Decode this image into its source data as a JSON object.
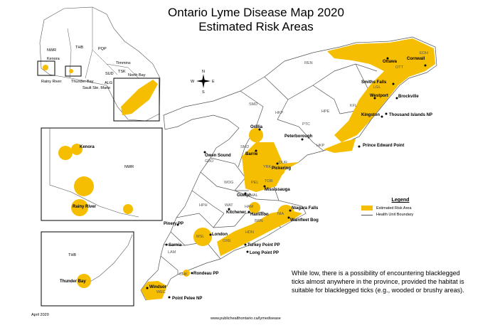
{
  "title_line1": "Ontario Lyme Disease Map 2020",
  "title_line2": "Estimated Risk Areas",
  "legend": {
    "heading": "Legend",
    "risk_area_label": "Estimated Risk Area",
    "boundary_label": "Health Unit Boundary"
  },
  "note": "While low, there is a possibility of encountering blacklegged ticks almost anywhere in the province, provided the habitat is suitable for blacklegged ticks (e.g., wooded or brushy areas).",
  "footer_date": "April 2020",
  "footer_url": "www.publichealthontario.ca/lymedisease",
  "compass": {
    "n": "N",
    "s": "S",
    "e": "E",
    "w": "W"
  },
  "colors": {
    "risk": "#f6be00",
    "boundary": "#555555"
  },
  "inset_labels": {
    "nwr": "NWR",
    "thb": "THB",
    "pqp": "PQP",
    "kenora": "Kenora",
    "rainy_river": "Rainy River",
    "thunder_bay": "Thunder Bay",
    "timmins": "Timmins",
    "sud": "SUD",
    "tsk": "TSK",
    "north_bay": "North Bay",
    "alg": "ALG",
    "sault": "Sault Ste. Marie"
  },
  "detail_nwr": {
    "kenora": "Kenora",
    "nwr": "NWR",
    "rainy_river": "Rainy River"
  },
  "detail_thb": {
    "thb": "THB",
    "thunder_bay": "Thunder Bay"
  },
  "cities": {
    "ottawa": "Ottawa",
    "cornwall": "Cornwall",
    "smiths_falls": "Smiths Falls",
    "westport": "Westport",
    "brockville": "Brockville",
    "kingston": "Kingston",
    "thousand_islands": "Thousand Islands NP",
    "prince_edward": "Prince Edward Point",
    "peterborough": "Peterborough",
    "orillia": "Orillia",
    "barrie": "Barrie",
    "owen_sound": "Owen Sound",
    "pickering": "Pickering",
    "mississauga": "Mississauga",
    "guelph": "Guelph",
    "kitchener": "Kitchener",
    "hamilton": "Hamilton",
    "niagara_falls": "Niagara Falls",
    "wainfleet": "Wainfleet Bog",
    "pinery": "Pinery PP",
    "london": "London",
    "sarnia": "Sarnia",
    "turkey_point": "Turkey Point PP",
    "long_point": "Long Point PP",
    "rondeau": "Rondeau PP",
    "windsor": "Windsor",
    "point_pelee": "Point Pelee NP"
  },
  "health_units": {
    "ren": "REN",
    "eoh": "EOH",
    "ott": "OTT",
    "lgl": "LGL",
    "kfl": "KFL",
    "hpe": "HPE",
    "smd": "SMD",
    "hkp": "HKP",
    "ptc": "PTC",
    "hkp2": "HKP",
    "smd2": "SMD",
    "gbo": "GBO",
    "yrk": "YRK",
    "dur": "DUR",
    "pel": "PEL",
    "tor": "TOR",
    "hal": "HAL",
    "wdg": "WDG",
    "wat": "WAT",
    "ham": "HAM",
    "nia": "NIA",
    "brn": "BRN",
    "hph": "HPH",
    "msl": "MSL",
    "oxe": "OXE",
    "hdn": "HDN",
    "lam": "LAM",
    "chk": "CHK",
    "wec": "WEC"
  }
}
